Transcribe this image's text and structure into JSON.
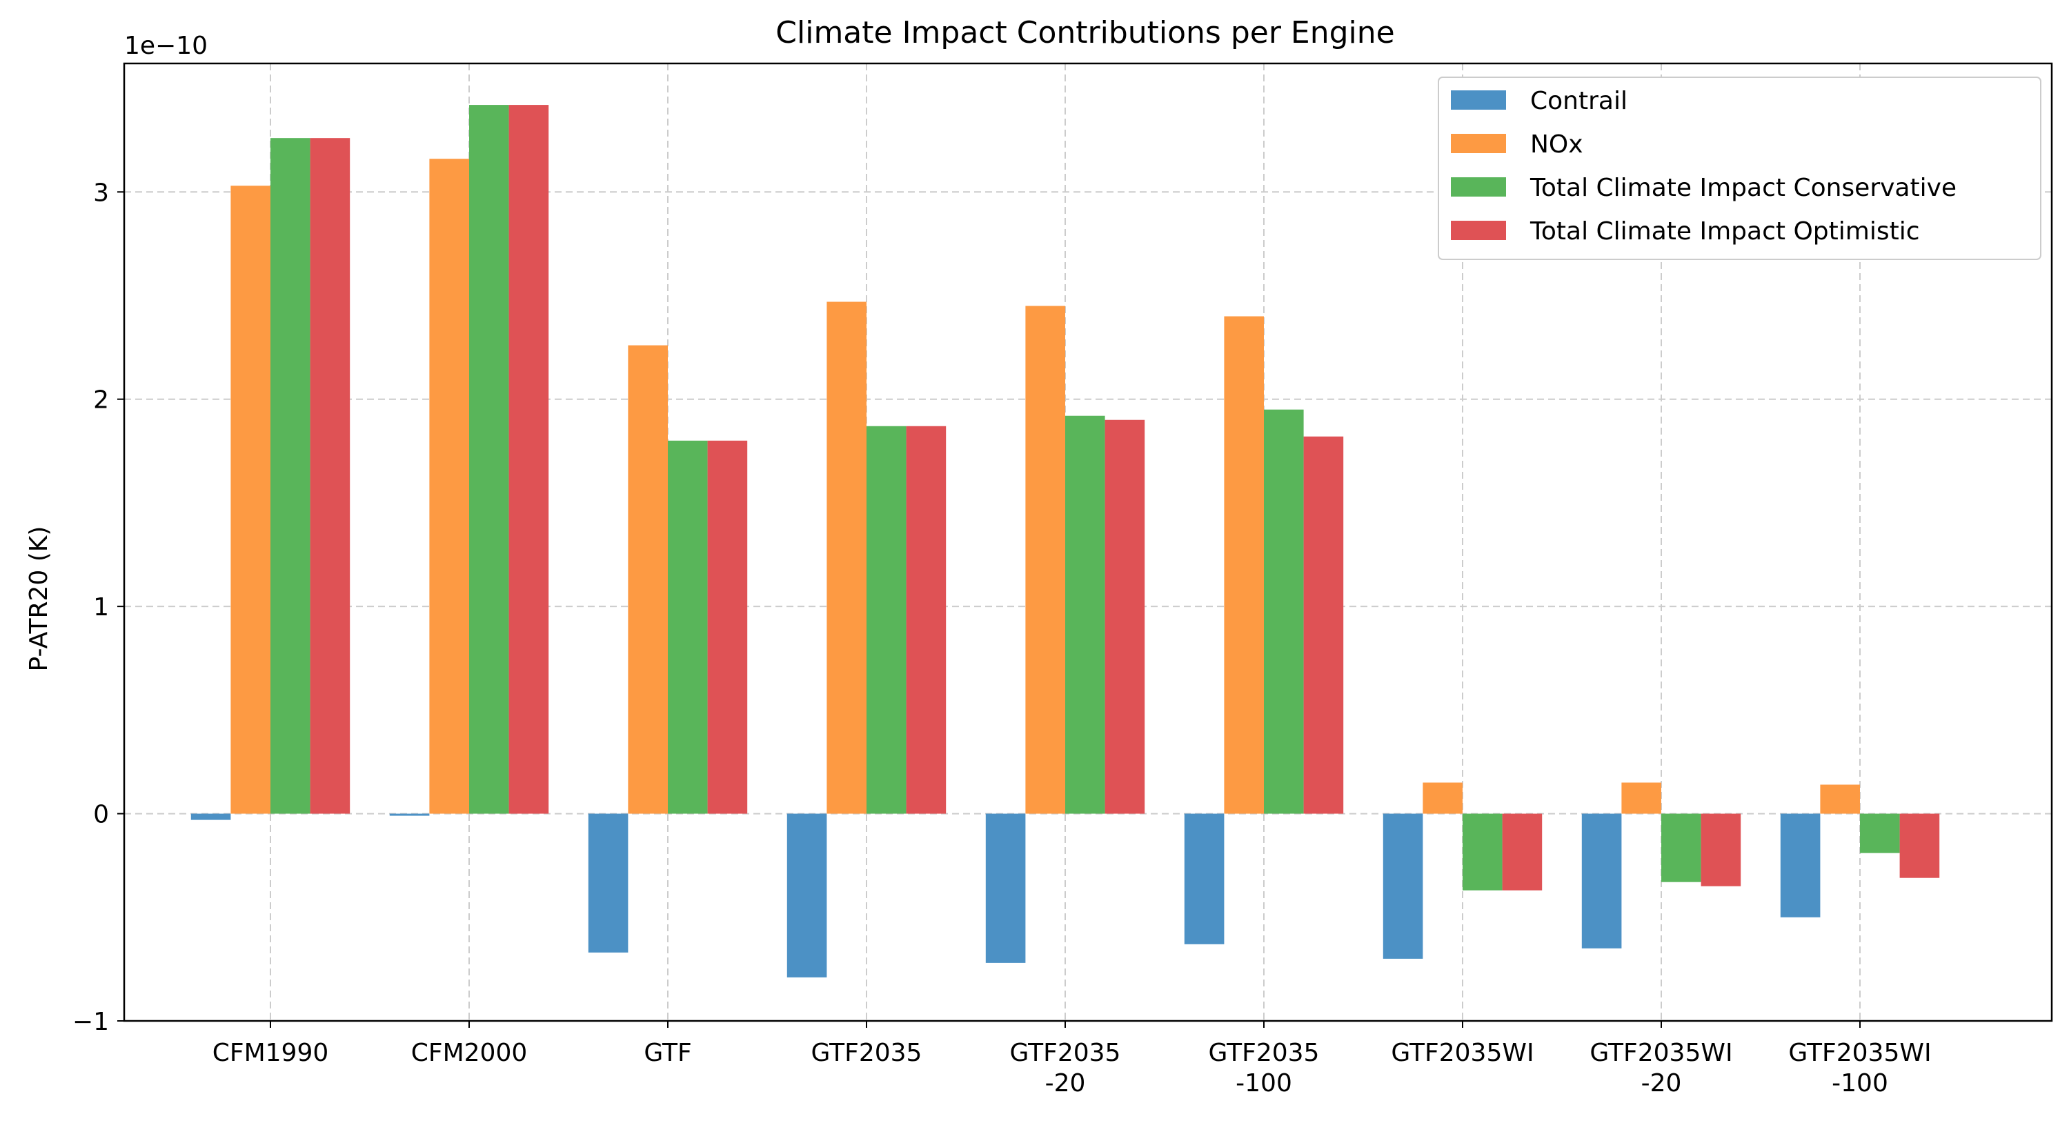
{
  "chart_data": {
    "type": "bar",
    "title": "Climate Impact Contributions per Engine",
    "xlabel": "",
    "ylabel": "P-ATR20 (K)",
    "y_offset_label": "1e−10",
    "y_scale": 1e-10,
    "ylim": [
      -1.0,
      3.62
    ],
    "yticks": [
      -1,
      0,
      1,
      2,
      3
    ],
    "ytick_labels": [
      "−1",
      "0",
      "1",
      "2",
      "3"
    ],
    "grid": true,
    "legend_position": "top-right",
    "categories": [
      [
        "CFM1990"
      ],
      [
        "CFM2000"
      ],
      [
        "GTF"
      ],
      [
        "GTF2035"
      ],
      [
        "GTF2035",
        "-20"
      ],
      [
        "GTF2035",
        "-100"
      ],
      [
        "GTF2035WI"
      ],
      [
        "GTF2035WI",
        "-20"
      ],
      [
        "GTF2035WI",
        "-100"
      ]
    ],
    "series": [
      {
        "name": "Contrail",
        "color": "#4c91c5",
        "values": [
          -0.03,
          -0.01,
          -0.67,
          -0.79,
          -0.72,
          -0.63,
          -0.7,
          -0.65,
          -0.5
        ]
      },
      {
        "name": "NOx",
        "color": "#fd9a43",
        "values": [
          3.03,
          3.16,
          2.26,
          2.47,
          2.45,
          2.4,
          0.15,
          0.15,
          0.14
        ]
      },
      {
        "name": "Total Climate Impact Conservative",
        "color": "#59b55a",
        "values": [
          3.26,
          3.42,
          1.8,
          1.87,
          1.92,
          1.95,
          -0.37,
          -0.33,
          -0.19
        ]
      },
      {
        "name": "Total Climate Impact Optimistic",
        "color": "#df5255",
        "values": [
          3.26,
          3.42,
          1.8,
          1.87,
          1.9,
          1.82,
          -0.37,
          -0.35,
          -0.31
        ]
      }
    ]
  }
}
